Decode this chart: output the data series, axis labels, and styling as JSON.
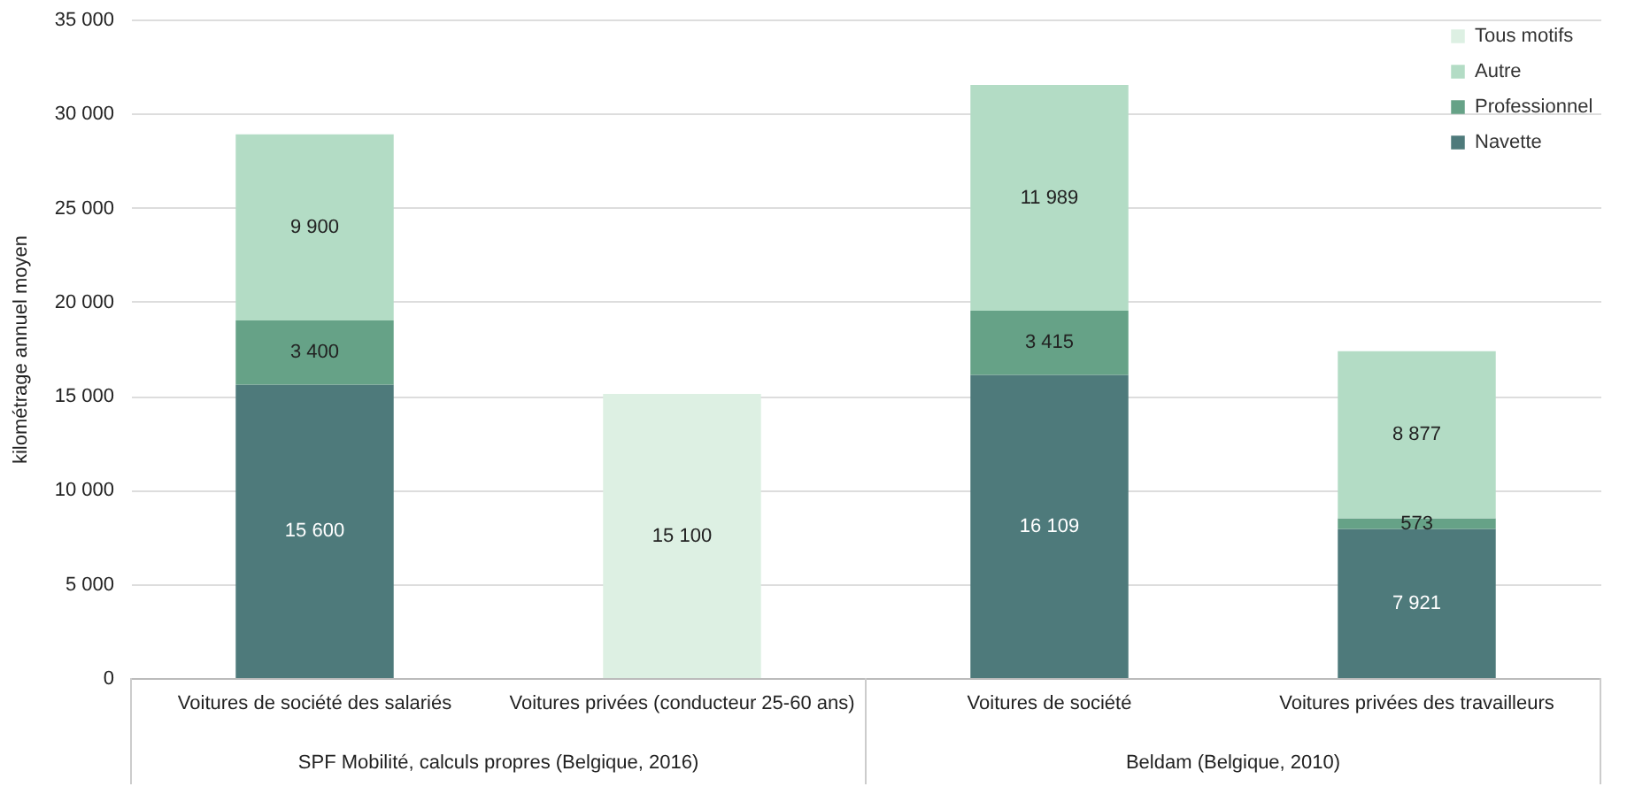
{
  "chart_data": {
    "type": "bar",
    "stacked": true,
    "ylabel": "kilométrage annuel moyen",
    "categories": [
      "Voitures de société des salariés",
      "Voitures privées (conducteur 25-60 ans)",
      "Voitures de société",
      "Voitures privées des travailleurs"
    ],
    "series": [
      {
        "name": "Navette",
        "color": "#4e7a7b",
        "values": [
          15600,
          null,
          16109,
          7921
        ],
        "value_labels": [
          "15 600",
          null,
          "16 109",
          "7 921"
        ]
      },
      {
        "name": "Professionnel",
        "color": "#66a287",
        "values": [
          3400,
          null,
          3415,
          573
        ],
        "value_labels": [
          "3 400",
          null,
          "3 415",
          "573"
        ]
      },
      {
        "name": "Autre",
        "color": "#b3dcc5",
        "values": [
          9900,
          null,
          11989,
          8877
        ],
        "value_labels": [
          "9 900",
          null,
          "11 989",
          "8 877"
        ]
      },
      {
        "name": "Tous motifs",
        "color": "#ddf0e3",
        "values": [
          null,
          15100,
          null,
          null
        ],
        "value_labels": [
          null,
          "15 100",
          null,
          null
        ]
      }
    ],
    "ylim": [
      0,
      35000
    ],
    "yticks": [
      0,
      {
        "value": 5000,
        "label": "5 000"
      },
      {
        "value": 10000,
        "label": "10 000"
      },
      {
        "value": 15000,
        "label": "15 000"
      },
      {
        "value": 20000,
        "label": "20 000"
      },
      {
        "value": 25000,
        "label": "25 000"
      },
      {
        "value": 30000,
        "label": "30 000"
      },
      {
        "value": 35000,
        "label": "35 000"
      }
    ],
    "grid": "y",
    "legend": "top right",
    "annotations": [
      "SPF Mobilité, calculs propres (Belgique, 2016)",
      "Beldam (Belgique, 2010)"
    ]
  }
}
